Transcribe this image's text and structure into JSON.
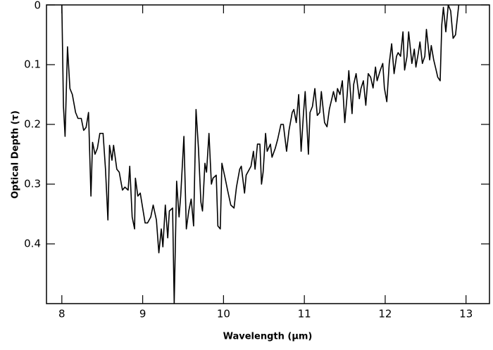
{
  "chart_data": {
    "type": "line",
    "x_label": "Wavelength (μm)",
    "y_label": "Optical Depth (τ)",
    "color": "#000000",
    "x": [
      8.0,
      8.02,
      8.04,
      8.07,
      8.1,
      8.13,
      8.17,
      8.2,
      8.24,
      8.27,
      8.3,
      8.33,
      8.36,
      8.38,
      8.41,
      8.44,
      8.47,
      8.51,
      8.54,
      8.57,
      8.59,
      8.62,
      8.64,
      8.68,
      8.71,
      8.75,
      8.78,
      8.82,
      8.84,
      8.87,
      8.9,
      8.91,
      8.94,
      8.97,
      9.0,
      9.03,
      9.06,
      9.1,
      9.13,
      9.17,
      9.2,
      9.23,
      9.25,
      9.28,
      9.31,
      9.33,
      9.37,
      9.39,
      9.42,
      9.45,
      9.47,
      9.51,
      9.54,
      9.57,
      9.6,
      9.63,
      9.66,
      9.69,
      9.72,
      9.74,
      9.77,
      9.79,
      9.82,
      9.85,
      9.87,
      9.91,
      9.93,
      9.96,
      9.98,
      10.02,
      10.05,
      10.09,
      10.13,
      10.16,
      10.2,
      10.22,
      10.26,
      10.28,
      10.32,
      10.34,
      10.37,
      10.39,
      10.42,
      10.45,
      10.47,
      10.49,
      10.52,
      10.54,
      10.58,
      10.6,
      10.64,
      10.67,
      10.71,
      10.74,
      10.78,
      10.81,
      10.85,
      10.87,
      10.9,
      10.93,
      10.96,
      10.99,
      11.01,
      11.05,
      11.07,
      11.1,
      11.13,
      11.16,
      11.19,
      11.21,
      11.25,
      11.28,
      11.31,
      11.34,
      11.36,
      11.39,
      11.41,
      11.44,
      11.47,
      11.5,
      11.53,
      11.55,
      11.59,
      11.61,
      11.64,
      11.68,
      11.7,
      11.73,
      11.76,
      11.79,
      11.82,
      11.85,
      11.88,
      11.9,
      11.94,
      11.97,
      11.99,
      12.02,
      12.05,
      12.08,
      12.11,
      12.14,
      12.16,
      12.19,
      12.22,
      12.24,
      12.27,
      12.29,
      12.33,
      12.36,
      12.38,
      12.41,
      12.43,
      12.46,
      12.49,
      12.51,
      12.55,
      12.57,
      12.6,
      12.63,
      12.65,
      12.68,
      12.7,
      12.72,
      12.75,
      12.78,
      12.81,
      12.84,
      12.87,
      12.91
    ],
    "values": [
      0.0,
      0.17,
      0.22,
      0.07,
      0.14,
      0.15,
      0.18,
      0.19,
      0.19,
      0.21,
      0.205,
      0.18,
      0.32,
      0.23,
      0.25,
      0.24,
      0.215,
      0.215,
      0.275,
      0.36,
      0.235,
      0.26,
      0.235,
      0.275,
      0.28,
      0.31,
      0.305,
      0.31,
      0.27,
      0.355,
      0.375,
      0.29,
      0.32,
      0.315,
      0.34,
      0.365,
      0.365,
      0.355,
      0.335,
      0.36,
      0.415,
      0.375,
      0.405,
      0.335,
      0.39,
      0.345,
      0.34,
      0.5,
      0.295,
      0.355,
      0.32,
      0.22,
      0.375,
      0.345,
      0.325,
      0.37,
      0.175,
      0.24,
      0.33,
      0.345,
      0.265,
      0.28,
      0.215,
      0.3,
      0.29,
      0.285,
      0.37,
      0.375,
      0.265,
      0.29,
      0.31,
      0.335,
      0.34,
      0.305,
      0.275,
      0.27,
      0.315,
      0.285,
      0.275,
      0.27,
      0.245,
      0.275,
      0.233,
      0.233,
      0.3,
      0.28,
      0.215,
      0.245,
      0.233,
      0.255,
      0.24,
      0.225,
      0.2,
      0.2,
      0.245,
      0.21,
      0.18,
      0.175,
      0.197,
      0.15,
      0.245,
      0.18,
      0.145,
      0.25,
      0.18,
      0.17,
      0.14,
      0.185,
      0.18,
      0.145,
      0.197,
      0.204,
      0.174,
      0.157,
      0.145,
      0.162,
      0.14,
      0.15,
      0.127,
      0.197,
      0.15,
      0.11,
      0.182,
      0.133,
      0.115,
      0.157,
      0.14,
      0.127,
      0.168,
      0.115,
      0.121,
      0.139,
      0.104,
      0.127,
      0.109,
      0.098,
      0.139,
      0.162,
      0.098,
      0.065,
      0.115,
      0.086,
      0.08,
      0.086,
      0.045,
      0.109,
      0.086,
      0.045,
      0.098,
      0.074,
      0.104,
      0.08,
      0.062,
      0.098,
      0.086,
      0.041,
      0.092,
      0.068,
      0.092,
      0.109,
      0.121,
      0.127,
      0.033,
      0.004,
      0.045,
      0,
      0.01,
      0.056,
      0.05,
      0
    ],
    "xlim": [
      7.81,
      13.29
    ],
    "ylim": [
      0.5,
      0
    ],
    "xticks": [
      8,
      9,
      10,
      11,
      12,
      13
    ],
    "yticks": [
      0,
      0.1,
      0.2,
      0.3,
      0.4
    ]
  }
}
